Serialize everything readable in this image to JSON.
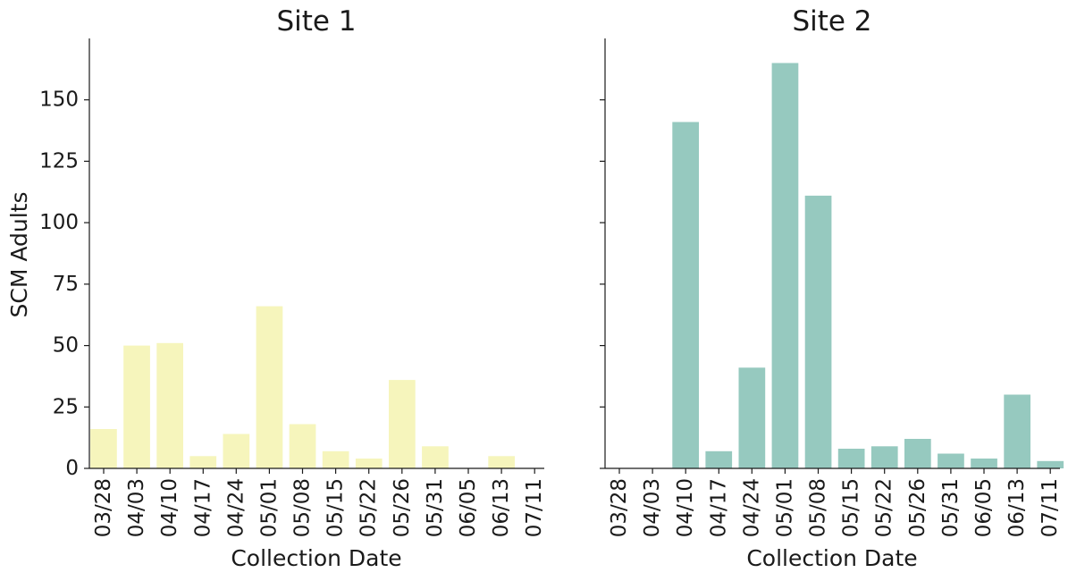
{
  "chart_data": [
    {
      "type": "bar",
      "title": "Site 1",
      "xlabel": "Collection Date",
      "ylabel": "SCM Adults",
      "categories": [
        "03/28",
        "04/03",
        "04/10",
        "04/17",
        "04/24",
        "05/01",
        "05/08",
        "05/15",
        "05/22",
        "05/26",
        "05/31",
        "06/05",
        "06/13",
        "07/11"
      ],
      "values": [
        16,
        50,
        51,
        5,
        14,
        66,
        18,
        7,
        4,
        36,
        9,
        0,
        5,
        0
      ],
      "color": "#f6f5bc",
      "ylim": [
        0,
        175
      ],
      "yticks": [
        "0",
        "25",
        "50",
        "75",
        "100",
        "125",
        "150"
      ],
      "grid": false
    },
    {
      "type": "bar",
      "title": "Site 2",
      "xlabel": "Collection Date",
      "ylabel": "",
      "categories": [
        "03/28",
        "04/03",
        "04/10",
        "04/17",
        "04/24",
        "05/01",
        "05/08",
        "05/15",
        "05/22",
        "05/26",
        "05/31",
        "06/05",
        "06/13",
        "07/11"
      ],
      "values": [
        0,
        0,
        141,
        7,
        41,
        165,
        111,
        8,
        9,
        12,
        6,
        4,
        30,
        3
      ],
      "color": "#96c9bf",
      "ylim": [
        0,
        175
      ],
      "yticks": [],
      "grid": false
    }
  ]
}
